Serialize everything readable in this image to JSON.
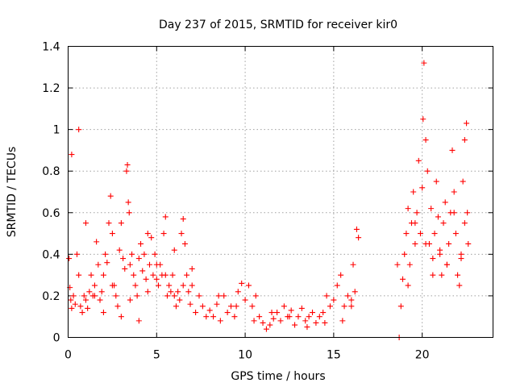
{
  "chart_data": {
    "type": "scatter",
    "title": "Day 237 of 2015, SRMTID for receiver kir0",
    "xlabel": "GPS time / hours",
    "ylabel": "SRMTID / TECUs",
    "xlim": [
      0,
      24
    ],
    "ylim": [
      0,
      1.4
    ],
    "xticks": [
      0,
      5,
      10,
      15,
      20
    ],
    "xtick_labels": [
      "0",
      "5",
      "10",
      "15",
      "20"
    ],
    "yticks": [
      0,
      0.2,
      0.4,
      0.6,
      0.8,
      1.0,
      1.2,
      1.4
    ],
    "ytick_labels": [
      "0",
      "0.2",
      "0.4",
      "0.6",
      "0.8",
      "1",
      "1.2",
      "1.4"
    ],
    "grid": true,
    "marker": "+",
    "series": [
      {
        "name": "SRMTID",
        "color": "#ff0000",
        "x": [
          0.05,
          0.1,
          0.15,
          0.2,
          0.3,
          0.4,
          0.5,
          0.6,
          0.7,
          0.8,
          0.9,
          1.0,
          1.1,
          1.2,
          1.3,
          1.4,
          1.5,
          1.6,
          1.7,
          1.8,
          1.9,
          2.0,
          2.1,
          2.2,
          2.3,
          2.4,
          2.5,
          2.6,
          2.7,
          2.8,
          2.9,
          3.0,
          3.1,
          3.2,
          3.3,
          3.35,
          3.4,
          3.45,
          3.5,
          3.6,
          3.7,
          3.8,
          3.9,
          4.0,
          4.1,
          4.2,
          4.3,
          4.4,
          4.5,
          4.6,
          4.7,
          4.8,
          4.9,
          5.0,
          5.1,
          5.2,
          5.3,
          5.4,
          5.5,
          5.6,
          5.7,
          5.8,
          5.9,
          6.0,
          6.1,
          6.2,
          6.3,
          6.4,
          6.5,
          6.6,
          6.7,
          6.8,
          6.9,
          7.0,
          7.2,
          7.4,
          7.6,
          7.8,
          8.0,
          8.2,
          8.4,
          8.6,
          8.8,
          9.0,
          9.2,
          9.4,
          9.6,
          9.8,
          10.0,
          10.2,
          10.4,
          10.6,
          10.8,
          11.0,
          11.2,
          11.4,
          11.6,
          11.8,
          12.0,
          12.2,
          12.4,
          12.6,
          12.8,
          13.0,
          13.2,
          13.4,
          13.6,
          13.8,
          14.0,
          14.2,
          14.4,
          14.6,
          14.8,
          15.0,
          15.2,
          15.4,
          15.6,
          15.8,
          16.0,
          16.1,
          16.2,
          16.3,
          16.4,
          18.6,
          18.7,
          18.8,
          18.9,
          19.0,
          19.1,
          19.2,
          19.3,
          19.4,
          19.5,
          19.6,
          19.7,
          19.8,
          19.9,
          20.0,
          20.05,
          20.1,
          20.2,
          20.3,
          20.4,
          20.5,
          20.6,
          20.7,
          20.8,
          20.9,
          21.0,
          21.1,
          21.2,
          21.3,
          21.4,
          21.5,
          21.6,
          21.7,
          21.8,
          21.9,
          22.0,
          22.1,
          22.2,
          22.3,
          22.4,
          22.5,
          22.55,
          22.6,
          0.2,
          0.6,
          1.0,
          1.5,
          2.0,
          2.5,
          3.0,
          3.5,
          4.0,
          4.5,
          5.0,
          5.5,
          6.0,
          6.5,
          7.0,
          8.5,
          9.5,
          10.5,
          11.5,
          12.5,
          13.5,
          14.5,
          15.5,
          16.0,
          19.2,
          19.6,
          20.2,
          20.6,
          21.0,
          21.4,
          21.8,
          22.2,
          22.4
        ],
        "y": [
          0.38,
          0.24,
          0.18,
          0.14,
          0.2,
          0.16,
          0.4,
          0.3,
          0.15,
          0.12,
          0.2,
          0.18,
          0.14,
          0.22,
          0.3,
          0.2,
          0.25,
          0.46,
          0.35,
          0.18,
          0.22,
          0.3,
          0.4,
          0.36,
          0.55,
          0.68,
          0.5,
          0.25,
          0.2,
          0.15,
          0.42,
          0.55,
          0.38,
          0.33,
          0.8,
          0.83,
          0.65,
          0.6,
          0.35,
          0.4,
          0.3,
          0.25,
          0.2,
          0.38,
          0.45,
          0.32,
          0.4,
          0.28,
          0.5,
          0.35,
          0.48,
          0.3,
          0.4,
          0.28,
          0.25,
          0.35,
          0.3,
          0.5,
          0.58,
          0.2,
          0.25,
          0.22,
          0.3,
          0.2,
          0.15,
          0.22,
          0.18,
          0.5,
          0.57,
          0.45,
          0.3,
          0.22,
          0.16,
          0.25,
          0.12,
          0.2,
          0.15,
          0.1,
          0.13,
          0.1,
          0.16,
          0.08,
          0.2,
          0.12,
          0.15,
          0.1,
          0.22,
          0.26,
          0.18,
          0.25,
          0.15,
          0.2,
          0.1,
          0.07,
          0.04,
          0.06,
          0.09,
          0.12,
          0.08,
          0.15,
          0.1,
          0.13,
          0.06,
          0.1,
          0.14,
          0.08,
          0.1,
          0.12,
          0.07,
          0.1,
          0.12,
          0.2,
          0.15,
          0.18,
          0.25,
          0.3,
          0.15,
          0.2,
          0.18,
          0.35,
          0.22,
          0.52,
          0.48,
          0.35,
          0.0,
          0.15,
          0.28,
          0.4,
          0.5,
          0.62,
          0.35,
          0.55,
          0.7,
          0.45,
          0.6,
          0.85,
          0.5,
          0.72,
          1.05,
          1.32,
          0.95,
          0.8,
          0.45,
          0.62,
          0.38,
          0.5,
          0.75,
          0.58,
          0.4,
          0.3,
          0.55,
          0.65,
          0.35,
          0.45,
          0.6,
          0.9,
          0.7,
          0.5,
          0.3,
          0.25,
          0.38,
          0.75,
          0.95,
          1.03,
          0.6,
          0.45,
          0.88,
          1.0,
          0.55,
          0.2,
          0.12,
          0.25,
          0.1,
          0.18,
          0.08,
          0.22,
          0.35,
          0.3,
          0.42,
          0.25,
          0.33,
          0.2,
          0.15,
          0.08,
          0.12,
          0.1,
          0.05,
          0.07,
          0.08,
          0.15,
          0.25,
          0.55,
          0.45,
          0.3,
          0.42,
          0.35,
          0.6,
          0.4,
          0.55
        ]
      }
    ]
  }
}
